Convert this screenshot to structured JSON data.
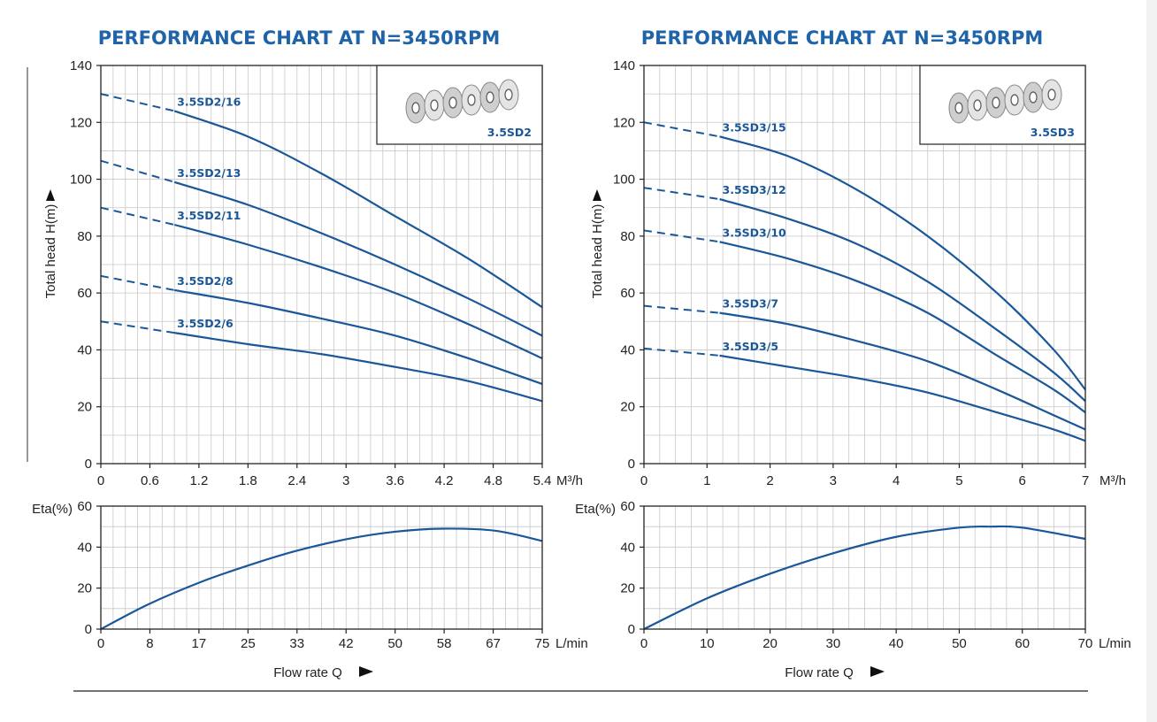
{
  "chart_data": [
    {
      "panel": "left",
      "title": "PERFORMANCE CHART AT N=3450RPM",
      "inset_label": "3.5SD2",
      "head_chart": {
        "type": "line",
        "ylabel": "Total head H(m)",
        "x_unit": "M³/h",
        "xlim": [
          0,
          5.4
        ],
        "ylim": [
          0,
          140
        ],
        "x_ticks": [
          "0",
          "0.6",
          "1.2",
          "1.8",
          "2.4",
          "3",
          "3.6",
          "4.2",
          "4.8",
          "5.4"
        ],
        "y_ticks": [
          "0",
          "20",
          "40",
          "60",
          "80",
          "100",
          "120",
          "140"
        ],
        "dashed_until_x": 0.9,
        "series": [
          {
            "name": "3.5SD2/16",
            "x": [
              0,
              0.9,
              1.8,
              2.7,
              3.6,
              4.5,
              5.4
            ],
            "y": [
              130,
              124,
              115,
              102,
              87,
              72,
              55
            ]
          },
          {
            "name": "3.5SD2/13",
            "x": [
              0,
              0.9,
              1.8,
              2.7,
              3.6,
              4.5,
              5.4
            ],
            "y": [
              106.5,
              99,
              91,
              81,
              70,
              58,
              45
            ]
          },
          {
            "name": "3.5SD2/11",
            "x": [
              0,
              0.9,
              1.8,
              2.7,
              3.6,
              4.5,
              5.4
            ],
            "y": [
              90,
              84,
              77,
              69,
              60,
              49,
              37
            ]
          },
          {
            "name": "3.5SD2/8",
            "x": [
              0,
              0.9,
              1.8,
              2.7,
              3.6,
              4.5,
              5.4
            ],
            "y": [
              66,
              61,
              56.5,
              51,
              45,
              37,
              28
            ]
          },
          {
            "name": "3.5SD2/6",
            "x": [
              0,
              0.9,
              1.8,
              2.7,
              3.6,
              4.5,
              5.4
            ],
            "y": [
              50,
              46,
              42,
              38.5,
              34,
              29,
              22
            ]
          }
        ]
      },
      "eff_chart": {
        "type": "line",
        "ylabel": "Eta(%)",
        "x_unit": "L/min",
        "xlim": [
          0,
          75
        ],
        "ylim": [
          0,
          60
        ],
        "x_ticks": [
          "0",
          "8",
          "17",
          "25",
          "33",
          "42",
          "50",
          "58",
          "67",
          "75"
        ],
        "y_ticks": [
          "0",
          "20",
          "40",
          "60"
        ],
        "series": [
          {
            "x": [
              0,
              8,
              17,
              25,
              33,
              42,
              50,
              58,
              67,
              75
            ],
            "y": [
              0,
              12,
              23,
              31,
              38,
              44,
              47.5,
              49,
              48,
              43
            ]
          }
        ]
      },
      "xlabel": "Flow rate Q"
    },
    {
      "panel": "right",
      "title": "PERFORMANCE CHART AT N=3450RPM",
      "inset_label": "3.5SD3",
      "head_chart": {
        "type": "line",
        "ylabel": "Total head H(m)",
        "x_unit": "M³/h",
        "xlim": [
          0,
          7
        ],
        "ylim": [
          0,
          140
        ],
        "x_ticks": [
          "0",
          "1",
          "2",
          "3",
          "4",
          "5",
          "6",
          "7"
        ],
        "y_ticks": [
          "0",
          "20",
          "40",
          "60",
          "80",
          "100",
          "120",
          "140"
        ],
        "dashed_until_x": 1.2,
        "series": [
          {
            "name": "3.5SD3/15",
            "x": [
              0,
              1.2,
              2.3,
              3.4,
              4.5,
              5.6,
              6.5,
              7
            ],
            "y": [
              120,
              115,
              108,
              96,
              80,
              60,
              40,
              26
            ]
          },
          {
            "name": "3.5SD3/12",
            "x": [
              0,
              1.2,
              2.3,
              3.4,
              4.5,
              5.6,
              6.5,
              7
            ],
            "y": [
              97,
              93,
              86,
              77,
              64,
              47,
              32,
              22
            ]
          },
          {
            "name": "3.5SD3/10",
            "x": [
              0,
              1.2,
              2.3,
              3.4,
              4.5,
              5.6,
              6.5,
              7
            ],
            "y": [
              82,
              78,
              72,
              64,
              53,
              38,
              26,
              18
            ]
          },
          {
            "name": "3.5SD3/7",
            "x": [
              0,
              1.2,
              2.3,
              3.4,
              4.5,
              5.6,
              6.5,
              7
            ],
            "y": [
              55.5,
              53,
              49,
              43,
              36,
              26,
              17,
              12
            ]
          },
          {
            "name": "3.5SD3/5",
            "x": [
              0,
              1.2,
              2.3,
              3.4,
              4.5,
              5.6,
              6.5,
              7
            ],
            "y": [
              40.5,
              38,
              34,
              30,
              25,
              18,
              12,
              8
            ]
          }
        ]
      },
      "eff_chart": {
        "type": "line",
        "ylabel": "Eta(%)",
        "x_unit": "L/min",
        "xlim": [
          0,
          70
        ],
        "ylim": [
          0,
          60
        ],
        "x_ticks": [
          "0",
          "10",
          "20",
          "30",
          "40",
          "50",
          "60",
          "70"
        ],
        "y_ticks": [
          "0",
          "20",
          "40",
          "60"
        ],
        "series": [
          {
            "x": [
              0,
              10,
              20,
              30,
              40,
              50,
              55,
              60,
              70
            ],
            "y": [
              0,
              15,
              27,
              37,
              45,
              49.5,
              50,
              49.5,
              44
            ]
          }
        ]
      },
      "xlabel": "Flow rate Q"
    }
  ]
}
